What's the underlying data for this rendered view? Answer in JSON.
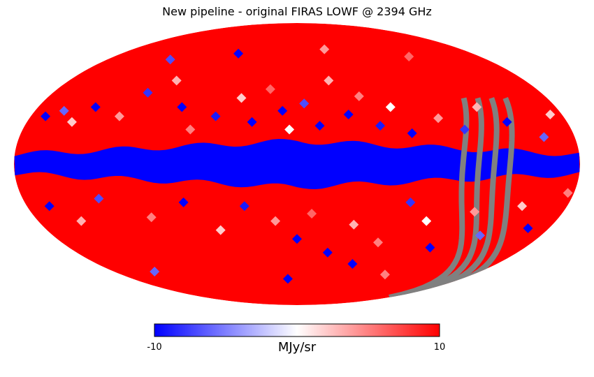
{
  "chart_data": {
    "type": "heatmap",
    "projection": "mollweide",
    "title": "New pipeline - original FIRAS LOWF @ 2394 GHz",
    "colormap": "bwr",
    "colorbar": {
      "min": -10,
      "max": 10,
      "min_label": "-10",
      "max_label": "10",
      "unit": "MJy/sr",
      "orientation": "horizontal",
      "placement": "bottom"
    },
    "missing_color": "#808080",
    "colors": {
      "low": "#0000ff",
      "mid": "#ffffff",
      "high": "#ff0000",
      "missing": "#808080"
    },
    "regions": {
      "background_value": 10,
      "galactic_plane": {
        "value": -10,
        "lat_halfwidth_center_deg": 12,
        "lat_halfwidth_edge_deg": 5,
        "lon_extent_deg": [
          -180,
          180
        ]
      },
      "masked_stripes_ecliptic_lon_deg": [
        -150,
        -140,
        -130,
        -120
      ]
    },
    "scatter_pixels": [
      {
        "lon": 170,
        "lat": 25,
        "value": -10
      },
      {
        "lon": 160,
        "lat": 28,
        "value": -6
      },
      {
        "lon": 150,
        "lat": 22,
        "value": 2
      },
      {
        "lon": 140,
        "lat": 30,
        "value": -10
      },
      {
        "lon": 120,
        "lat": 25,
        "value": 4
      },
      {
        "lon": 110,
        "lat": 38,
        "value": -8
      },
      {
        "lon": 95,
        "lat": 45,
        "value": 3
      },
      {
        "lon": 80,
        "lat": 30,
        "value": -10
      },
      {
        "lon": 70,
        "lat": 18,
        "value": 5
      },
      {
        "lon": 55,
        "lat": 25,
        "value": -9
      },
      {
        "lon": 40,
        "lat": 35,
        "value": 2
      },
      {
        "lon": 30,
        "lat": 22,
        "value": -10
      },
      {
        "lon": 20,
        "lat": 40,
        "value": 6
      },
      {
        "lon": 10,
        "lat": 28,
        "value": -10
      },
      {
        "lon": 5,
        "lat": 18,
        "value": 0
      },
      {
        "lon": -5,
        "lat": 32,
        "value": -7
      },
      {
        "lon": -15,
        "lat": 20,
        "value": -10
      },
      {
        "lon": -25,
        "lat": 45,
        "value": 3
      },
      {
        "lon": -35,
        "lat": 26,
        "value": -10
      },
      {
        "lon": -45,
        "lat": 36,
        "value": 5
      },
      {
        "lon": -55,
        "lat": 20,
        "value": -9
      },
      {
        "lon": -65,
        "lat": 30,
        "value": 0
      },
      {
        "lon": -75,
        "lat": 16,
        "value": -10
      },
      {
        "lon": -95,
        "lat": 24,
        "value": 4
      },
      {
        "lon": -110,
        "lat": 18,
        "value": -8
      },
      {
        "lon": -125,
        "lat": 30,
        "value": 3
      },
      {
        "lon": -140,
        "lat": 22,
        "value": -10
      },
      {
        "lon": -160,
        "lat": 14,
        "value": -6
      },
      {
        "lon": -172,
        "lat": 26,
        "value": 2
      },
      {
        "lon": 165,
        "lat": -22,
        "value": -10
      },
      {
        "lon": 150,
        "lat": -30,
        "value": 3
      },
      {
        "lon": 130,
        "lat": -18,
        "value": -7
      },
      {
        "lon": 100,
        "lat": -28,
        "value": 5
      },
      {
        "lon": 75,
        "lat": -20,
        "value": -10
      },
      {
        "lon": 55,
        "lat": -35,
        "value": 2
      },
      {
        "lon": 35,
        "lat": -22,
        "value": -9
      },
      {
        "lon": 15,
        "lat": -30,
        "value": 4
      },
      {
        "lon": 0,
        "lat": -40,
        "value": -10
      },
      {
        "lon": -10,
        "lat": -26,
        "value": 6
      },
      {
        "lon": -25,
        "lat": -48,
        "value": -10
      },
      {
        "lon": -40,
        "lat": -32,
        "value": 3
      },
      {
        "lon": -50,
        "lat": -55,
        "value": -10
      },
      {
        "lon": -62,
        "lat": -42,
        "value": 5
      },
      {
        "lon": -75,
        "lat": -20,
        "value": -8
      },
      {
        "lon": -90,
        "lat": -30,
        "value": 0
      },
      {
        "lon": -105,
        "lat": -45,
        "value": -10
      },
      {
        "lon": -120,
        "lat": -25,
        "value": 4
      },
      {
        "lon": -135,
        "lat": -38,
        "value": -6
      },
      {
        "lon": -150,
        "lat": -22,
        "value": 2
      },
      {
        "lon": -165,
        "lat": -34,
        "value": -10
      },
      {
        "lon": -176,
        "lat": -15,
        "value": 5
      },
      {
        "lon": 60,
        "lat": 62,
        "value": -10
      },
      {
        "lon": -30,
        "lat": 65,
        "value": 4
      },
      {
        "lon": 120,
        "lat": 58,
        "value": -7
      },
      {
        "lon": -110,
        "lat": 60,
        "value": 6
      },
      {
        "lon": 10,
        "lat": -65,
        "value": -10
      },
      {
        "lon": -90,
        "lat": -62,
        "value": 5
      },
      {
        "lon": 140,
        "lat": -60,
        "value": -6
      }
    ]
  }
}
